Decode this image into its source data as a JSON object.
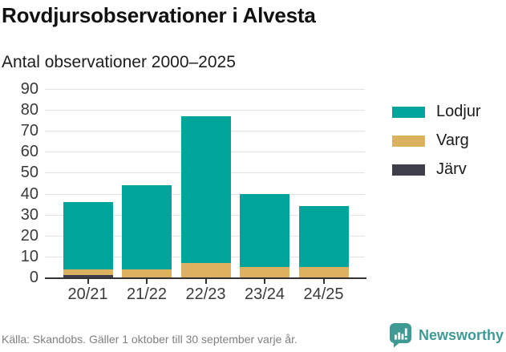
{
  "header": {
    "title": "Rovdjursobservationer i Alvesta",
    "subtitle": "Antal observationer 2000–2025"
  },
  "chart_data": {
    "type": "bar",
    "stacked": true,
    "title": "Rovdjursobservationer i Alvesta",
    "subtitle": "Antal observationer 2000–2025",
    "categories": [
      "20/21",
      "21/22",
      "22/23",
      "23/24",
      "24/25"
    ],
    "series": [
      {
        "name": "Lodjur",
        "color": "#00a49a",
        "values": [
          32,
          40,
          70,
          35,
          29
        ]
      },
      {
        "name": "Varg",
        "color": "#dcb15f",
        "values": [
          3,
          4,
          7,
          5,
          5
        ]
      },
      {
        "name": "Järv",
        "color": "#3e3e4a",
        "values": [
          1,
          0,
          0,
          0,
          0
        ]
      }
    ],
    "stack_totals": [
      36,
      44,
      77,
      40,
      34
    ],
    "xlabel": "",
    "ylabel": "",
    "ylim": [
      0,
      90
    ],
    "yticks": [
      0,
      10,
      20,
      30,
      40,
      50,
      60,
      70,
      80,
      90
    ],
    "grid": true,
    "legend_position": "right"
  },
  "footer": {
    "source": "Källa: Skandobs. Gäller 1 oktober till 30 september varje år.",
    "brand": "Newsworthy"
  },
  "colors": {
    "grid": "#e2e2e2",
    "axis": "#333333",
    "tick_label": "#3a3a3a",
    "brand_teal": "#3f9a94"
  }
}
